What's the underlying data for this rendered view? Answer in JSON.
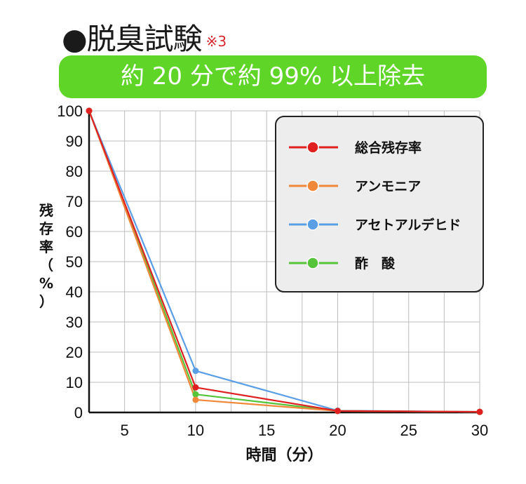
{
  "header": {
    "title": "●脱臭試験",
    "note": "※3"
  },
  "banner": {
    "text": "約 20 分で約 99% 以上除去"
  },
  "chart_data": {
    "type": "line",
    "xlabel": "時間（分）",
    "ylabel": "残存率（%）",
    "x_ticks": [
      5,
      10,
      15,
      20,
      25,
      30
    ],
    "y_ticks": [
      0,
      10,
      20,
      30,
      40,
      50,
      60,
      70,
      80,
      90,
      100
    ],
    "xlim": [
      2.5,
      30
    ],
    "ylim": [
      0,
      100
    ],
    "grid": true,
    "legend_position": "top-right",
    "series": [
      {
        "name": "総合残存率",
        "color": "#e02020",
        "x": [
          2.5,
          10,
          20,
          30
        ],
        "y": [
          100,
          8.3,
          0.5,
          0.2
        ]
      },
      {
        "name": "アンモニア",
        "color": "#f0883a",
        "x": [
          2.5,
          10,
          20,
          30
        ],
        "y": [
          100,
          4.2,
          0.5,
          0.2
        ]
      },
      {
        "name": "アセトアルデヒド",
        "color": "#5a9ee6",
        "x": [
          2.5,
          10,
          20,
          30
        ],
        "y": [
          100,
          13.8,
          0.6,
          0.2
        ]
      },
      {
        "name": "酢　酸",
        "color": "#55c43a",
        "x": [
          2.5,
          10,
          20,
          30
        ],
        "y": [
          100,
          6.0,
          0.5,
          0.2
        ]
      }
    ]
  }
}
